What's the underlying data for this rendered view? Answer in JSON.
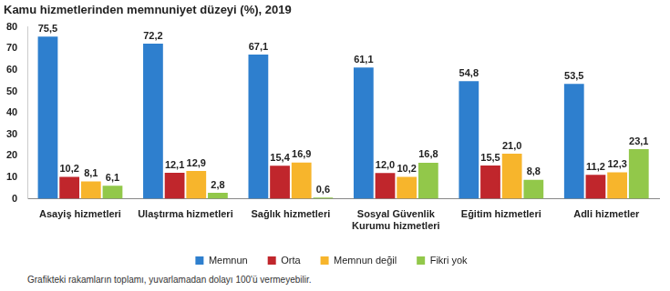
{
  "chart_data": {
    "type": "bar",
    "title": "Kamu hizmetlerinden memnuniyet düzeyi (%), 2019",
    "footnote": "Grafikteki rakamların toplamı, yuvarlamadan dolayı 100'ü vermeyebilir.",
    "categories": [
      "Asayiş hizmetleri",
      "Ulaştırma hizmetleri",
      "Sağlık hizmetleri",
      [
        "Sosyal Güvenlik",
        "Kurumu hizmetleri"
      ],
      "Eğitim hizmetleri",
      "Adli hizmetler"
    ],
    "series": [
      {
        "name": "Memnun",
        "color": "#2e7fce",
        "values": [
          75.5,
          72.2,
          67.1,
          61.1,
          54.8,
          53.5
        ],
        "value_labels": [
          "75,5",
          "72,2",
          "67,1",
          "61,1",
          "54,8",
          "53,5"
        ]
      },
      {
        "name": "Orta",
        "color": "#c0262c",
        "values": [
          10.2,
          12.1,
          15.4,
          12.0,
          15.5,
          11.2
        ],
        "value_labels": [
          "10,2",
          "12,1",
          "15,4",
          "12,0",
          "15,5",
          "11,2"
        ]
      },
      {
        "name": "Memnun değil",
        "color": "#f7b52c",
        "values": [
          8.1,
          12.9,
          16.9,
          10.2,
          21.0,
          12.3
        ],
        "value_labels": [
          "8,1",
          "12,9",
          "16,9",
          "10,2",
          "21,0",
          "12,3"
        ]
      },
      {
        "name": "Fikri yok",
        "color": "#92c84a",
        "values": [
          6.1,
          2.8,
          0.6,
          16.8,
          8.8,
          23.1
        ],
        "value_labels": [
          "6,1",
          "2,8",
          "0,6",
          "16,8",
          "8,8",
          "23,1"
        ]
      }
    ],
    "ylim": [
      0,
      80
    ],
    "yticks": [
      0,
      10,
      20,
      30,
      40,
      50,
      60,
      70,
      80
    ],
    "grid": false,
    "legend": "bottom",
    "data_labels": true
  }
}
